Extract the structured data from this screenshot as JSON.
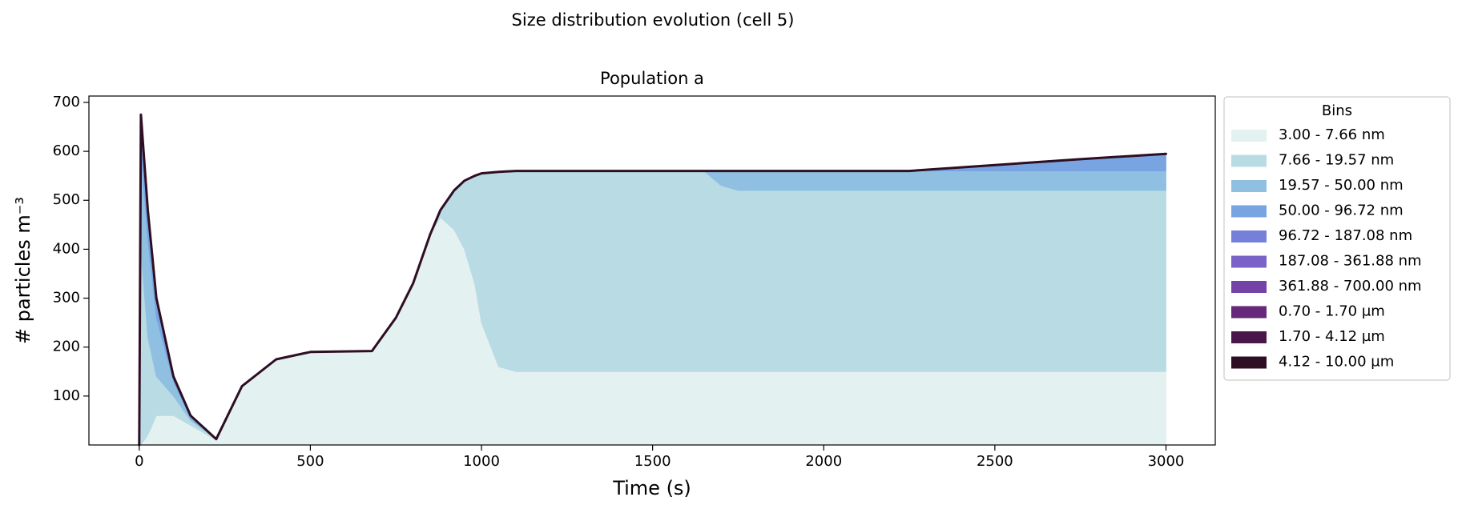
{
  "chart_data": {
    "type": "stacked_area",
    "title": "Size distribution evolution (cell 5)",
    "subtitle": "Population a",
    "x_label": "Time (s)",
    "y_label": "# particles m⁻³",
    "legend_title": "Bins",
    "legend": "outside right",
    "x": [
      0,
      5,
      25,
      50,
      100,
      150,
      225,
      300,
      400,
      500,
      680,
      750,
      800,
      850,
      880,
      920,
      950,
      980,
      1000,
      1050,
      1100,
      1200,
      1650,
      1700,
      1750,
      2250,
      2500,
      2750,
      3000
    ],
    "series": [
      {
        "name": "3.00 - 7.66 nm",
        "color": "#e4f1f1",
        "values": [
          0,
          0,
          20,
          60,
          60,
          40,
          10,
          120,
          175,
          190,
          192,
          260,
          330,
          430,
          465,
          440,
          400,
          330,
          250,
          160,
          150,
          150,
          150,
          150,
          150,
          150,
          150,
          150,
          150
        ]
      },
      {
        "name": "7.66 - 19.57 nm",
        "color": "#b9dbe3",
        "values": [
          0,
          400,
          200,
          80,
          40,
          10,
          2,
          0,
          0,
          0,
          0,
          0,
          0,
          0,
          15,
          80,
          140,
          220,
          305,
          398,
          410,
          410,
          410,
          380,
          370,
          370,
          370,
          370,
          370
        ]
      },
      {
        "name": "19.57 - 50.00 nm",
        "color": "#8fc0e1",
        "values": [
          0,
          200,
          200,
          120,
          30,
          5,
          0,
          0,
          0,
          0,
          0,
          0,
          0,
          0,
          0,
          0,
          0,
          0,
          0,
          0,
          0,
          0,
          0,
          30,
          40,
          40,
          40,
          40,
          40
        ]
      },
      {
        "name": "50.00 - 96.72 nm",
        "color": "#78a5e2",
        "values": [
          0,
          75,
          60,
          40,
          10,
          5,
          0,
          0,
          0,
          0,
          0,
          0,
          0,
          0,
          0,
          0,
          0,
          0,
          0,
          0,
          0,
          0,
          0,
          0,
          0,
          0,
          12,
          24,
          35
        ]
      },
      {
        "name": "96.72 - 187.08 nm",
        "color": "#7580db",
        "values": [
          0,
          0,
          0,
          0,
          0,
          0,
          0,
          0,
          0,
          0,
          0,
          0,
          0,
          0,
          0,
          0,
          0,
          0,
          0,
          0,
          0,
          0,
          0,
          0,
          0,
          0,
          0,
          0,
          0
        ]
      },
      {
        "name": "187.08 - 361.88 nm",
        "color": "#7a62c9",
        "values": [
          0,
          0,
          0,
          0,
          0,
          0,
          0,
          0,
          0,
          0,
          0,
          0,
          0,
          0,
          0,
          0,
          0,
          0,
          0,
          0,
          0,
          0,
          0,
          0,
          0,
          0,
          0,
          0,
          0
        ]
      },
      {
        "name": "361.88 - 700.00 nm",
        "color": "#7543a8",
        "values": [
          0,
          0,
          0,
          0,
          0,
          0,
          0,
          0,
          0,
          0,
          0,
          0,
          0,
          0,
          0,
          0,
          0,
          0,
          0,
          0,
          0,
          0,
          0,
          0,
          0,
          0,
          0,
          0,
          0
        ]
      },
      {
        "name": "0.70 - 1.70 µm",
        "color": "#66287a",
        "values": [
          0,
          0,
          0,
          0,
          0,
          0,
          0,
          0,
          0,
          0,
          0,
          0,
          0,
          0,
          0,
          0,
          0,
          0,
          0,
          0,
          0,
          0,
          0,
          0,
          0,
          0,
          0,
          0,
          0
        ]
      },
      {
        "name": "1.70 - 4.12 µm",
        "color": "#4a1548",
        "values": [
          0,
          0,
          0,
          0,
          0,
          0,
          0,
          0,
          0,
          0,
          0,
          0,
          0,
          0,
          0,
          0,
          0,
          0,
          0,
          0,
          0,
          0,
          0,
          0,
          0,
          0,
          0,
          0,
          0
        ]
      },
      {
        "name": "4.12 - 10.00 µm",
        "color": "#2e0e22",
        "values": [
          0,
          0,
          0,
          0,
          0,
          0,
          0,
          0,
          0,
          0,
          0,
          0,
          0,
          0,
          0,
          0,
          0,
          0,
          0,
          0,
          0,
          0,
          0,
          0,
          0,
          0,
          0,
          0,
          0
        ]
      }
    ],
    "xlim": [
      -147,
      3144
    ],
    "ylim": [
      0,
      713
    ],
    "xticks": [
      0,
      500,
      1000,
      1500,
      2000,
      2500,
      3000
    ],
    "yticks": [
      100,
      200,
      300,
      400,
      500,
      600,
      700
    ]
  }
}
